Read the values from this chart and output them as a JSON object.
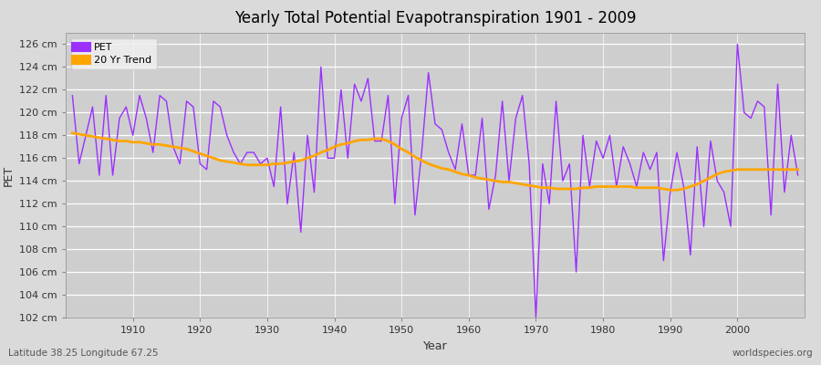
{
  "title": "Yearly Total Potential Evapotranspiration 1901 - 2009",
  "xlabel": "Year",
  "ylabel": "PET",
  "lat_lon_text": "Latitude 38.25 Longitude 67.25",
  "watermark": "worldspecies.org",
  "pet_line_color": "#9B30FF",
  "trend_line_color": "#FFA500",
  "fig_bg_color": "#E0E0E0",
  "plot_bg_color": "#D3D3D3",
  "grid_color": "#FFFFFF",
  "footer_bg_color": "#F0F0F0",
  "ylim": [
    102,
    127
  ],
  "yticks": [
    102,
    104,
    106,
    108,
    110,
    112,
    114,
    116,
    118,
    120,
    122,
    124,
    126
  ],
  "years": [
    1901,
    1902,
    1903,
    1904,
    1905,
    1906,
    1907,
    1908,
    1909,
    1910,
    1911,
    1912,
    1913,
    1914,
    1915,
    1916,
    1917,
    1918,
    1919,
    1920,
    1921,
    1922,
    1923,
    1924,
    1925,
    1926,
    1927,
    1928,
    1929,
    1930,
    1931,
    1932,
    1933,
    1934,
    1935,
    1936,
    1937,
    1938,
    1939,
    1940,
    1941,
    1942,
    1943,
    1944,
    1945,
    1946,
    1947,
    1948,
    1949,
    1950,
    1951,
    1952,
    1953,
    1954,
    1955,
    1956,
    1957,
    1958,
    1959,
    1960,
    1961,
    1962,
    1963,
    1964,
    1965,
    1966,
    1967,
    1968,
    1969,
    1970,
    1971,
    1972,
    1973,
    1974,
    1975,
    1976,
    1977,
    1978,
    1979,
    1980,
    1981,
    1982,
    1983,
    1984,
    1985,
    1986,
    1987,
    1988,
    1989,
    1990,
    1991,
    1992,
    1993,
    1994,
    1995,
    1996,
    1997,
    1998,
    1999,
    2000,
    2001,
    2002,
    2003,
    2004,
    2005,
    2006,
    2007,
    2008,
    2009
  ],
  "pet_values": [
    121.5,
    115.5,
    118.0,
    120.5,
    114.5,
    121.5,
    114.5,
    119.5,
    120.5,
    118.0,
    121.5,
    119.5,
    116.5,
    121.5,
    121.0,
    117.0,
    115.5,
    121.0,
    120.5,
    115.5,
    115.0,
    121.0,
    120.5,
    118.0,
    116.5,
    115.5,
    116.5,
    116.5,
    115.5,
    116.0,
    113.5,
    120.5,
    112.0,
    116.5,
    109.5,
    118.0,
    113.0,
    124.0,
    116.0,
    116.0,
    122.0,
    116.0,
    122.5,
    121.0,
    123.0,
    117.5,
    117.5,
    121.5,
    112.0,
    119.5,
    121.5,
    111.0,
    116.5,
    123.5,
    119.0,
    118.5,
    116.5,
    115.0,
    119.0,
    114.5,
    114.5,
    119.5,
    111.5,
    114.5,
    121.0,
    114.0,
    119.5,
    121.5,
    115.5,
    102.0,
    115.5,
    112.0,
    121.0,
    114.0,
    115.5,
    106.0,
    118.0,
    113.5,
    117.5,
    116.0,
    118.0,
    113.5,
    117.0,
    115.5,
    113.5,
    116.5,
    115.0,
    116.5,
    107.0,
    113.0,
    116.5,
    113.5,
    107.5,
    117.0,
    110.0,
    117.5,
    114.0,
    113.0,
    110.0,
    126.0,
    120.0,
    119.5,
    121.0,
    120.5,
    111.0,
    122.5,
    113.0,
    118.0,
    114.5
  ],
  "trend_values": [
    118.2,
    118.1,
    118.0,
    117.9,
    117.8,
    117.7,
    117.6,
    117.5,
    117.5,
    117.4,
    117.4,
    117.3,
    117.2,
    117.2,
    117.1,
    117.0,
    116.9,
    116.8,
    116.6,
    116.4,
    116.2,
    116.0,
    115.8,
    115.7,
    115.6,
    115.5,
    115.4,
    115.4,
    115.4,
    115.4,
    115.5,
    115.5,
    115.6,
    115.7,
    115.8,
    116.0,
    116.2,
    116.5,
    116.7,
    117.0,
    117.2,
    117.3,
    117.5,
    117.6,
    117.6,
    117.7,
    117.7,
    117.5,
    117.2,
    116.8,
    116.5,
    116.1,
    115.8,
    115.5,
    115.3,
    115.1,
    115.0,
    114.8,
    114.6,
    114.5,
    114.3,
    114.2,
    114.1,
    114.0,
    113.9,
    113.9,
    113.8,
    113.7,
    113.6,
    113.5,
    113.4,
    113.4,
    113.3,
    113.3,
    113.3,
    113.3,
    113.4,
    113.4,
    113.5,
    113.5,
    113.5,
    113.5,
    113.5,
    113.5,
    113.4,
    113.4,
    113.4,
    113.4,
    113.3,
    113.2,
    113.2,
    113.3,
    113.5,
    113.7,
    114.0,
    114.3,
    114.6,
    114.8,
    114.9,
    115.0,
    115.0,
    115.0,
    115.0,
    115.0,
    115.0,
    115.0,
    115.0,
    115.0,
    115.0
  ]
}
